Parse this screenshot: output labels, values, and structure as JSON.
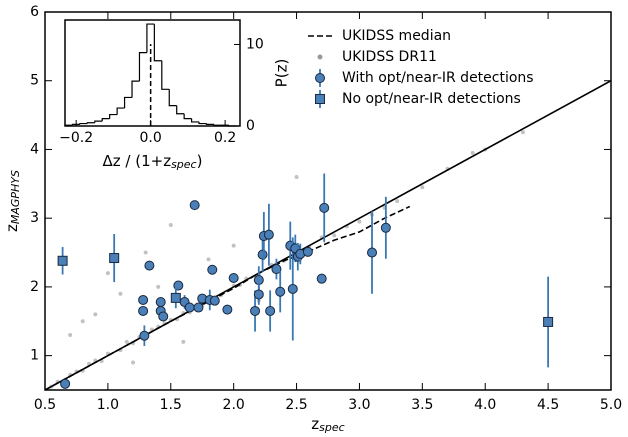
{
  "chart_data": [
    {
      "type": "scatter",
      "x_label": {
        "text": "z",
        "sub": "spec"
      },
      "y_label": {
        "text": "z",
        "sub": "MAGPHYS"
      },
      "xlim": [
        0.5,
        5.0
      ],
      "ylim": [
        0.5,
        6
      ],
      "xticks": [
        0.5,
        {
          "value": 1.0,
          "label": "1.0"
        },
        1.5,
        {
          "value": 2.0,
          "label": "2.0"
        },
        2.5,
        {
          "value": 3.0,
          "label": "3.0"
        },
        3.5,
        {
          "value": 4.0,
          "label": "4.0"
        },
        4.5,
        {
          "value": 5.0,
          "label": "5.0"
        }
      ],
      "yticks": [
        1,
        2,
        3,
        4,
        5,
        6
      ],
      "legend": "upper right",
      "series": [
        {
          "name": "UKIDSS median",
          "kind": "line",
          "dash": true,
          "color": "#000000",
          "x": [
            0.5,
            0.8,
            1.0,
            1.5,
            2.0,
            2.2,
            2.4,
            2.6,
            2.8,
            3.0,
            3.2,
            3.4
          ],
          "values": [
            0.5,
            0.8,
            1.0,
            1.5,
            1.98,
            2.2,
            2.38,
            2.52,
            2.68,
            2.8,
            3.0,
            3.17
          ]
        },
        {
          "name": "UKIDSS DR11",
          "kind": "dot",
          "color": "#9a9a9a",
          "x": [
            0.55,
            0.6,
            0.65,
            0.7,
            0.75,
            0.8,
            0.85,
            0.9,
            0.95,
            1.0,
            1.1,
            1.15,
            1.2,
            1.25,
            1.3,
            1.35,
            1.4,
            1.45,
            1.5,
            1.55,
            1.6,
            1.65,
            1.7,
            1.75,
            1.8,
            1.9,
            2.0,
            2.05,
            2.1,
            2.2,
            2.3,
            2.4,
            2.5,
            2.6,
            2.7,
            2.8,
            2.9,
            3.0,
            3.1,
            3.2,
            3.3,
            3.5,
            3.7,
            3.9,
            4.0,
            4.3,
            0.7,
            0.9,
            1.0,
            1.2,
            1.4,
            1.6,
            1.8,
            2.0,
            2.2,
            2.5,
            1.1,
            1.3,
            0.8,
            1.5
          ],
          "values": [
            0.55,
            0.62,
            0.63,
            0.72,
            0.77,
            0.78,
            0.88,
            0.93,
            0.92,
            1.03,
            1.08,
            1.2,
            1.18,
            1.27,
            1.3,
            1.38,
            1.42,
            1.47,
            1.52,
            1.53,
            1.62,
            1.63,
            1.72,
            1.73,
            1.82,
            1.88,
            2.02,
            2.03,
            2.12,
            2.18,
            2.32,
            2.38,
            2.52,
            2.58,
            2.72,
            2.75,
            2.88,
            2.95,
            3.05,
            3.15,
            3.25,
            3.45,
            3.72,
            3.95,
            4.0,
            4.25,
            1.3,
            1.6,
            2.2,
            0.9,
            2.0,
            1.2,
            2.4,
            2.6,
            1.8,
            3.6,
            1.9,
            2.5,
            1.5,
            2.9
          ]
        },
        {
          "name": "With opt/near-IR detections",
          "kind": "circle",
          "color": "#4a7fb8",
          "x": [
            0.66,
            1.33,
            1.28,
            1.28,
            1.29,
            1.42,
            1.42,
            1.44,
            1.56,
            1.61,
            1.65,
            1.69,
            1.72,
            1.75,
            1.81,
            1.83,
            1.85,
            1.95,
            2.0,
            2.17,
            2.2,
            2.2,
            2.23,
            2.24,
            2.28,
            2.29,
            2.34,
            2.37,
            2.45,
            2.47,
            2.49,
            2.51,
            2.53,
            2.59,
            2.7,
            2.72,
            3.1,
            3.21
          ],
          "values": [
            0.59,
            2.31,
            1.81,
            1.65,
            1.29,
            1.78,
            1.65,
            1.57,
            2.02,
            1.78,
            1.7,
            3.19,
            1.7,
            1.83,
            1.81,
            2.25,
            1.8,
            1.67,
            2.13,
            1.65,
            2.1,
            1.89,
            2.47,
            2.74,
            2.76,
            1.65,
            2.26,
            1.93,
            2.6,
            1.97,
            2.56,
            2.44,
            2.48,
            2.51,
            2.12,
            3.15,
            2.5,
            2.86
          ],
          "errors": [
            null,
            null,
            null,
            null,
            0.15,
            null,
            null,
            null,
            null,
            0.1,
            null,
            null,
            null,
            null,
            0.15,
            null,
            null,
            null,
            null,
            0.3,
            0.2,
            0.15,
            0.25,
            0.35,
            0.45,
            0.3,
            0.15,
            0.3,
            0.35,
            0.75,
            0.2,
            0.2,
            0.15,
            null,
            null,
            0.5,
            0.6,
            0.45
          ]
        },
        {
          "name": "No opt/near-IR detections",
          "kind": "square",
          "color": "#4a7fb8",
          "x": [
            0.64,
            1.05,
            1.54,
            4.5
          ],
          "values": [
            2.38,
            2.42,
            1.84,
            1.49
          ],
          "errors": [
            0.2,
            0.35,
            0.15,
            0.66
          ]
        },
        {
          "kind": "line",
          "dash": false,
          "color": "#000000",
          "x": [
            0.5,
            5.0
          ],
          "values": [
            0.5,
            5.0
          ]
        }
      ]
    },
    {
      "type": "histogram",
      "x_label": {
        "text": "Δz / (1+z",
        "sub": "spec",
        "tail": ")"
      },
      "y_label": "P(z)",
      "xlim": [
        -0.23,
        0.24
      ],
      "ylim": [
        0,
        13
      ],
      "xticks": [
        {
          "value": -0.2,
          "label": "−0.2"
        },
        {
          "value": 0,
          "label": "0.0"
        },
        0.2
      ],
      "yticks": [
        0,
        10
      ],
      "bins": [
        -0.23,
        -0.21,
        -0.19,
        -0.17,
        -0.15,
        -0.13,
        -0.11,
        -0.09,
        -0.07,
        -0.05,
        -0.03,
        -0.01,
        0.01,
        0.03,
        0.05,
        0.07,
        0.09,
        0.11,
        0.13,
        0.15,
        0.17,
        0.19,
        0.21,
        0.23
      ],
      "counts": [
        0.1,
        0.2,
        0.3,
        0.4,
        0.6,
        0.9,
        1.4,
        2.2,
        3.5,
        5.5,
        9.0,
        12.5,
        8.0,
        4.5,
        2.5,
        1.5,
        0.9,
        0.5,
        0.3,
        0.2,
        0.1,
        0.1,
        0.0
      ],
      "median": 0,
      "color": "#000000"
    }
  ]
}
